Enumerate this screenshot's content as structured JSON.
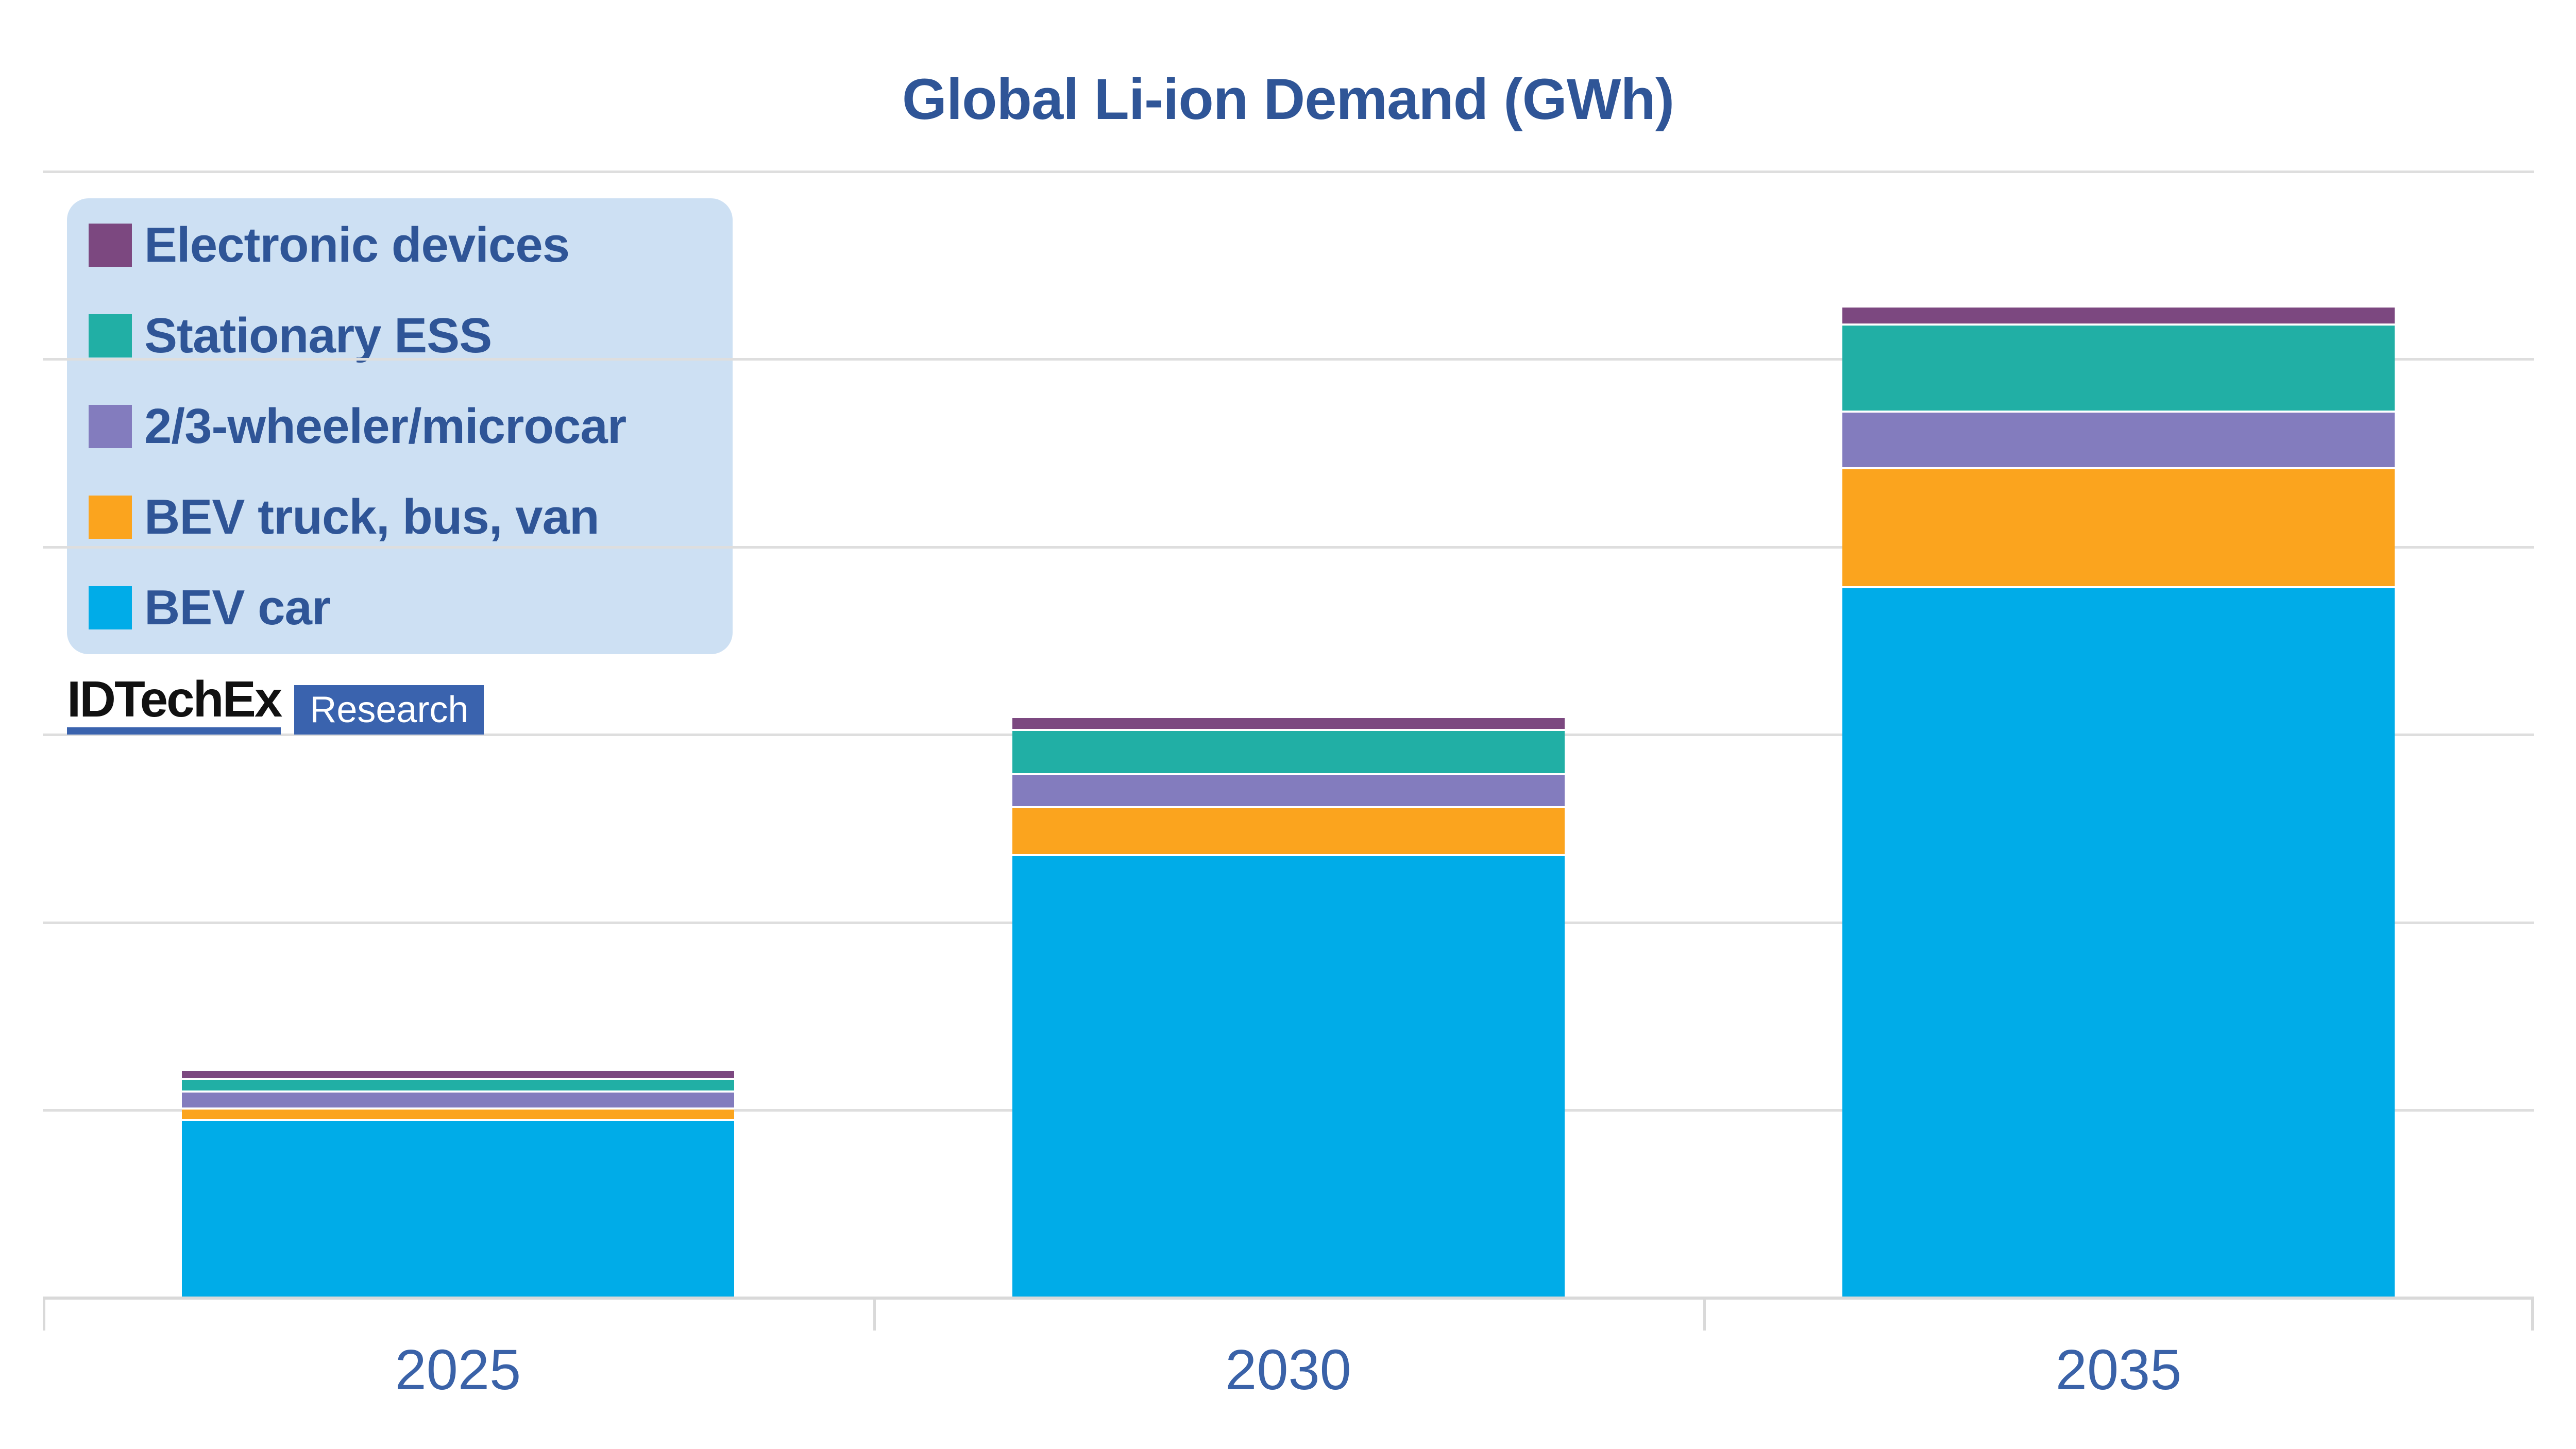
{
  "title": "Global Li-ion Demand (GWh)",
  "logo": {
    "brand": "IDTechEx",
    "label": "Research"
  },
  "legend": {
    "items": [
      {
        "label": "Electronic devices",
        "color": "#7C4880"
      },
      {
        "label": "Stationary ESS",
        "color": "#21AFA5"
      },
      {
        "label": "2/3-wheeler/microcar",
        "color": "#837CBE"
      },
      {
        "label": "BEV truck, bus, van",
        "color": "#FBA41E"
      },
      {
        "label": "BEV car",
        "color": "#00ACE8"
      }
    ]
  },
  "chart_data": {
    "type": "bar",
    "stacked": true,
    "title": "Global Li-ion Demand (GWh)",
    "categories": [
      "2025",
      "2030",
      "2035"
    ],
    "series": [
      {
        "name": "BEV car",
        "color": "#00ACE8",
        "values": [
          955,
          2365,
          3790
        ]
      },
      {
        "name": "BEV truck, bus, van",
        "color": "#FBA41E",
        "values": [
          60,
          255,
          635
        ]
      },
      {
        "name": "2/3-wheeler/microcar",
        "color": "#837CBE",
        "values": [
          90,
          175,
          300
        ]
      },
      {
        "name": "Stationary ESS",
        "color": "#21AFA5",
        "values": [
          65,
          235,
          465
        ]
      },
      {
        "name": "Electronic devices",
        "color": "#7C4880",
        "values": [
          40,
          60,
          85
        ]
      }
    ],
    "totals": [
      1210,
      3090,
      5275
    ],
    "ylabel": "GWh",
    "ylim": [
      0,
      6000
    ],
    "gridline_step": 1000,
    "y_axis_labels_visible": false,
    "grid": "horizontal",
    "legend_position": "top-left"
  },
  "colors": {
    "title_text": "#2F5597",
    "axis_label_text": "#3A62A8",
    "legend_background": "#CDE0F3",
    "gridline": "#DEDEDE",
    "axis_line": "#D9D9D9",
    "logo_blue": "#3A63AE",
    "background": "#FFFFFF"
  }
}
